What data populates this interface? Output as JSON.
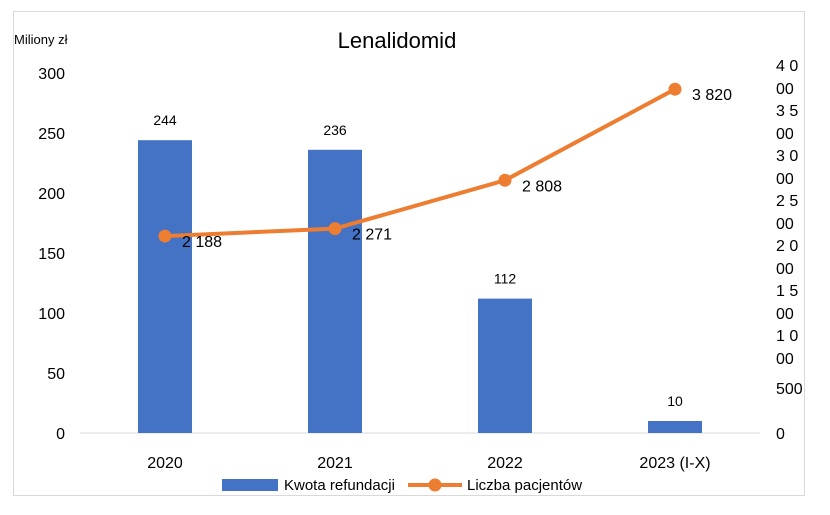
{
  "chart_data": {
    "type": "bar+line",
    "title": "Lenalidomid",
    "ylabel_left": "Miliony zł",
    "categories": [
      "2020",
      "2021",
      "2022",
      "2023 (I-X)"
    ],
    "series": [
      {
        "name": "Kwota refundacji",
        "type": "bar",
        "axis": "left",
        "values": [
          244,
          236,
          112,
          10
        ],
        "labels": [
          "244",
          "236",
          "112",
          "10"
        ],
        "color": "#4472c4"
      },
      {
        "name": "Liczba pacjentów",
        "type": "line",
        "axis": "right",
        "values": [
          2188,
          2271,
          2808,
          3820
        ],
        "labels": [
          "2 188",
          "2 271",
          "2 808",
          "3 820"
        ],
        "color": "#ed7d31"
      }
    ],
    "left_axis": {
      "ylim": [
        0,
        300
      ],
      "ticks": [
        "0",
        "50",
        "100",
        "150",
        "200",
        "250",
        "300"
      ]
    },
    "right_axis": {
      "ylim": [
        0,
        4000
      ],
      "ticks": [
        {
          "value": 0,
          "lines": [
            "0"
          ]
        },
        {
          "value": 500,
          "lines": [
            "500"
          ]
        },
        {
          "value": 1000,
          "lines": [
            "1 0",
            "00"
          ]
        },
        {
          "value": 1500,
          "lines": [
            "1 5",
            "00"
          ]
        },
        {
          "value": 2000,
          "lines": [
            "2 0",
            "00"
          ]
        },
        {
          "value": 2500,
          "lines": [
            "2 5",
            "00"
          ]
        },
        {
          "value": 3000,
          "lines": [
            "3 0",
            "00"
          ]
        },
        {
          "value": 3500,
          "lines": [
            "3 5",
            "00"
          ]
        },
        {
          "value": 4000,
          "lines": [
            "4 0",
            "00"
          ]
        }
      ]
    },
    "grid": false,
    "legend_position": "bottom"
  }
}
